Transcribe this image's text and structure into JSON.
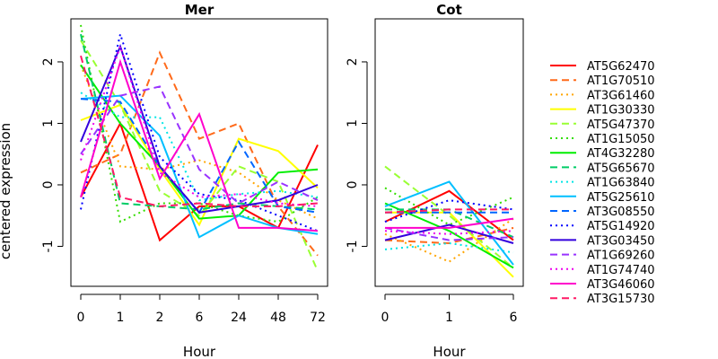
{
  "ylabel": "centered expression",
  "chart_data": {
    "type": "line",
    "panels": [
      {
        "title": "Mer",
        "xlabel": "Hour",
        "x_ticks": [
          "0",
          "1",
          "2",
          "6",
          "24",
          "48",
          "72"
        ],
        "y_ticks": [
          "-1",
          "0",
          "1",
          "2"
        ],
        "ylim": [
          -1.65,
          2.7
        ]
      },
      {
        "title": "Cot",
        "xlabel": "Hour",
        "x_ticks": [
          "0",
          "1",
          "6"
        ],
        "y_ticks": [
          "-1",
          "0",
          "1",
          "2"
        ],
        "ylim": [
          -1.65,
          2.7
        ]
      }
    ],
    "series": [
      {
        "name": "AT5G62470",
        "color": "#ff0000",
        "dash": "solid",
        "mer": [
          -0.2,
          1.0,
          -0.9,
          -0.35,
          -0.35,
          -0.7,
          0.65
        ],
        "cot": [
          -0.6,
          -0.1,
          -0.9
        ]
      },
      {
        "name": "AT1G70510",
        "color": "#ff6a1a",
        "dash": "dash",
        "mer": [
          0.2,
          0.5,
          2.15,
          0.75,
          1.0,
          -0.35,
          -1.15
        ],
        "cot": [
          -0.9,
          -0.95,
          -0.7
        ]
      },
      {
        "name": "AT3G61460",
        "color": "#ffa500",
        "dash": "dot",
        "mer": [
          1.95,
          0.3,
          0.25,
          0.4,
          0.2,
          -0.25,
          -0.55
        ],
        "cot": [
          -0.8,
          -1.25,
          -0.55
        ]
      },
      {
        "name": "AT1G30330",
        "color": "#ffff00",
        "dash": "solid",
        "mer": [
          1.05,
          1.3,
          0.25,
          -0.65,
          0.75,
          0.55,
          -0.05
        ],
        "cot": [
          -0.45,
          -0.45,
          -1.5
        ]
      },
      {
        "name": "AT5G47370",
        "color": "#99ff33",
        "dash": "dash",
        "mer": [
          2.35,
          1.3,
          -0.1,
          -0.5,
          0.3,
          0.05,
          -1.4
        ],
        "cot": [
          0.3,
          -0.5,
          -1.35
        ]
      },
      {
        "name": "AT1G15050",
        "color": "#33dd00",
        "dash": "dot",
        "mer": [
          2.6,
          -0.6,
          -0.3,
          -0.3,
          -0.5,
          -0.6,
          -0.2
        ],
        "cot": [
          -0.05,
          -0.65,
          -0.2
        ]
      },
      {
        "name": "AT4G32280",
        "color": "#00ee00",
        "dash": "solid",
        "mer": [
          1.95,
          1.0,
          0.3,
          -0.55,
          -0.5,
          0.2,
          0.25
        ],
        "cot": [
          -0.3,
          -0.75,
          -1.35
        ]
      },
      {
        "name": "AT5G65670",
        "color": "#00cc66",
        "dash": "dash",
        "mer": [
          2.45,
          -0.3,
          -0.35,
          -0.4,
          -0.3,
          -0.35,
          -0.4
        ],
        "cot": [
          -0.4,
          -0.4,
          -0.85
        ]
      },
      {
        "name": "AT1G63840",
        "color": "#00e5e5",
        "dash": "dot",
        "mer": [
          1.5,
          1.1,
          1.1,
          -0.25,
          -0.15,
          -0.1,
          -0.2
        ],
        "cot": [
          -1.05,
          -0.95,
          -1.1
        ]
      },
      {
        "name": "AT5G25610",
        "color": "#00bfff",
        "dash": "solid",
        "mer": [
          1.4,
          1.45,
          0.8,
          -0.85,
          -0.5,
          -0.7,
          -0.8
        ],
        "cot": [
          -0.35,
          0.05,
          -1.3
        ]
      },
      {
        "name": "AT3G08550",
        "color": "#0066ff",
        "dash": "dash",
        "mer": [
          1.4,
          1.35,
          0.3,
          -0.45,
          0.7,
          -0.35,
          -0.45
        ],
        "cot": [
          -0.45,
          -0.45,
          -0.45
        ]
      },
      {
        "name": "AT5G14920",
        "color": "#0000ff",
        "dash": "dot",
        "mer": [
          -0.4,
          2.45,
          0.45,
          -0.15,
          -0.25,
          -0.5,
          -0.75
        ],
        "cot": [
          -0.6,
          -0.25,
          -0.4
        ]
      },
      {
        "name": "AT3G03450",
        "color": "#3300dd",
        "dash": "solid",
        "mer": [
          0.7,
          2.25,
          0.3,
          -0.45,
          -0.35,
          -0.25,
          0.0
        ],
        "cot": [
          -0.9,
          -0.65,
          -0.95
        ]
      },
      {
        "name": "AT1G69260",
        "color": "#9933ff",
        "dash": "dash",
        "mer": [
          0.5,
          1.45,
          1.6,
          0.25,
          -0.3,
          0.05,
          -0.25
        ],
        "cot": [
          -0.7,
          -0.9,
          -0.85
        ]
      },
      {
        "name": "AT1G74740",
        "color": "#ee00ee",
        "dash": "dot",
        "mer": [
          0.4,
          2.25,
          0.2,
          -0.2,
          -0.15,
          -0.3,
          -0.35
        ],
        "cot": [
          -0.75,
          -0.8,
          -0.75
        ]
      },
      {
        "name": "AT3G46060",
        "color": "#ff00cc",
        "dash": "solid",
        "mer": [
          -0.2,
          2.0,
          0.1,
          1.15,
          -0.7,
          -0.7,
          -0.75
        ],
        "cot": [
          -0.7,
          -0.7,
          -0.55
        ]
      },
      {
        "name": "AT3G15730",
        "color": "#ff1a66",
        "dash": "dash",
        "mer": [
          2.1,
          -0.2,
          -0.35,
          -0.3,
          -0.35,
          -0.35,
          -0.3
        ],
        "cot": [
          -0.45,
          -0.4,
          -0.4
        ]
      }
    ]
  }
}
